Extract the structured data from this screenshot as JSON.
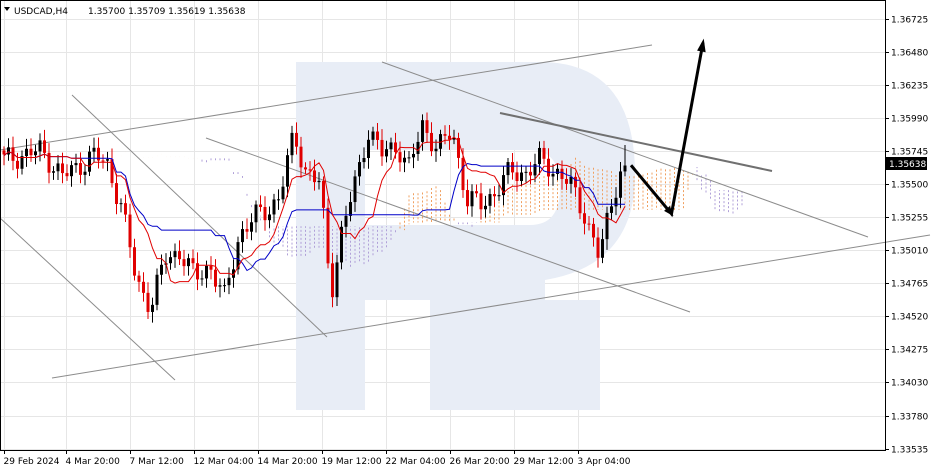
{
  "header": {
    "symbol_timeframe": "USDCAD,H4",
    "ohlc": "1.35700 1.35709 1.35619 1.35638"
  },
  "price_badge": "1.35638",
  "colors": {
    "bull": "#000000",
    "bear": "#e00000",
    "tenkan": "#e00000",
    "kijun": "#0000c8",
    "cloud_bull": "#f0a060",
    "cloud_bear": "#b0a0d8",
    "trendline": "#8c8c8c",
    "grid": "#e6e6e6",
    "watermark": "#e8edf6"
  },
  "chart_data": {
    "type": "candlestick",
    "title": "USDCAD,H4",
    "ylim": [
      1.33535,
      1.3679
    ],
    "y_ticks": [
      "1.36725",
      "1.36480",
      "1.36235",
      "1.35990",
      "1.35745",
      "1.35500",
      "1.35255",
      "1.35010",
      "1.34765",
      "1.34520",
      "1.34275",
      "1.34030",
      "1.33780",
      "1.33535"
    ],
    "x_ticks": [
      "29 Feb 2024",
      "4 Mar 20:00",
      "7 Mar 12:00",
      "12 Mar 04:00",
      "14 Mar 20:00",
      "19 Mar 12:00",
      "22 Mar 04:00",
      "26 Mar 20:00",
      "29 Mar 12:00",
      "3 Apr 04:00"
    ],
    "grid": true,
    "indicators": [
      "Ichimoku Tenkan",
      "Ichimoku Kijun",
      "Ichimoku Cloud"
    ],
    "last_price": 1.35638,
    "forecast_arrow": [
      {
        "step": 0,
        "price": 1.3564
      },
      {
        "step": 9,
        "price": 1.3528
      },
      {
        "step": 16,
        "price": 1.3655
      }
    ]
  }
}
